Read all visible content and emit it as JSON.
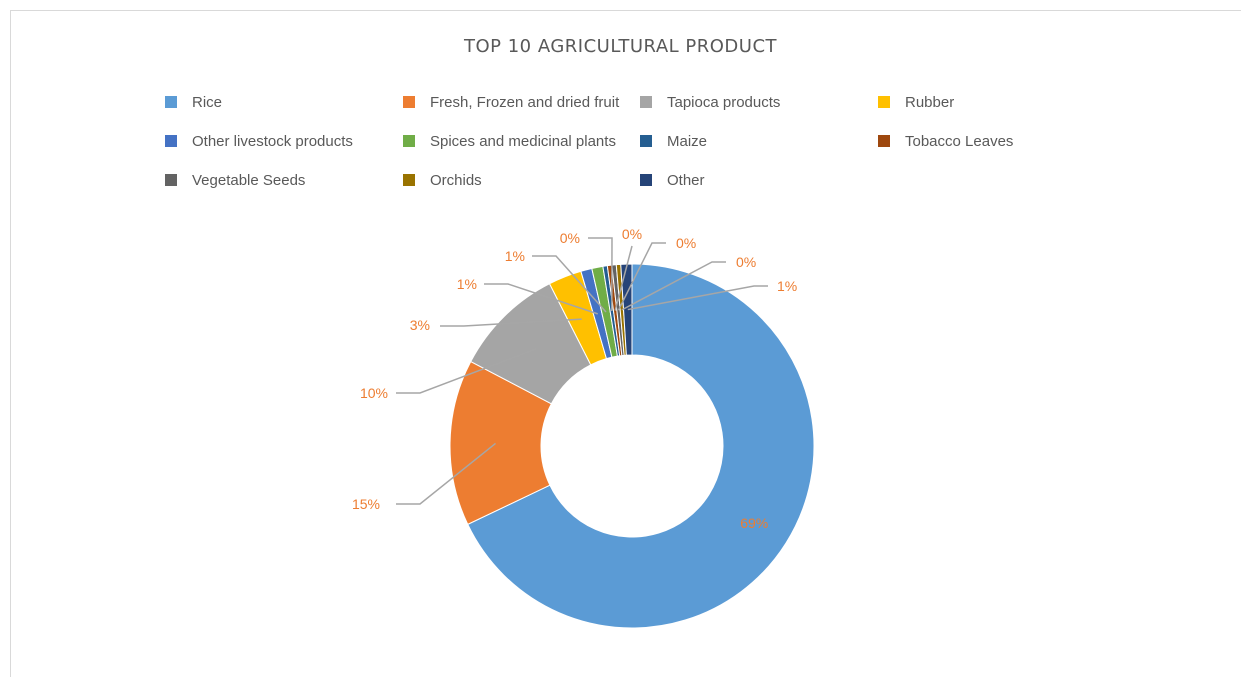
{
  "chart_data": {
    "type": "pie",
    "variant": "doughnut",
    "title": "TOP 10 AGRICULTURAL PRODUCT",
    "legend_position": "top",
    "slices": [
      {
        "name": "Rice",
        "value": 69,
        "label": "69%",
        "color": "#5b9bd5"
      },
      {
        "name": "Fresh, Frozen and dried fruit",
        "value": 15,
        "label": "15%",
        "color": "#ed7d31"
      },
      {
        "name": "Tapioca products",
        "value": 10,
        "label": "10%",
        "color": "#a5a5a5"
      },
      {
        "name": "Rubber",
        "value": 3,
        "label": "3%",
        "color": "#ffc000"
      },
      {
        "name": "Other livestock products",
        "value": 1,
        "label": "1%",
        "color": "#4472c4"
      },
      {
        "name": "Spices and medicinal plants",
        "value": 1,
        "label": "1%",
        "color": "#70ad47"
      },
      {
        "name": "Maize",
        "value": 0,
        "label": "0%",
        "color": "#255e91"
      },
      {
        "name": "Tobacco Leaves",
        "value": 0,
        "label": "0%",
        "color": "#9e480e"
      },
      {
        "name": "Vegetable Seeds",
        "value": 0,
        "label": "0%",
        "color": "#636363"
      },
      {
        "name": "Orchids",
        "value": 0,
        "label": "0%",
        "color": "#997300"
      },
      {
        "name": "Other",
        "value": 1,
        "label": "1%",
        "color": "#264478"
      }
    ]
  }
}
